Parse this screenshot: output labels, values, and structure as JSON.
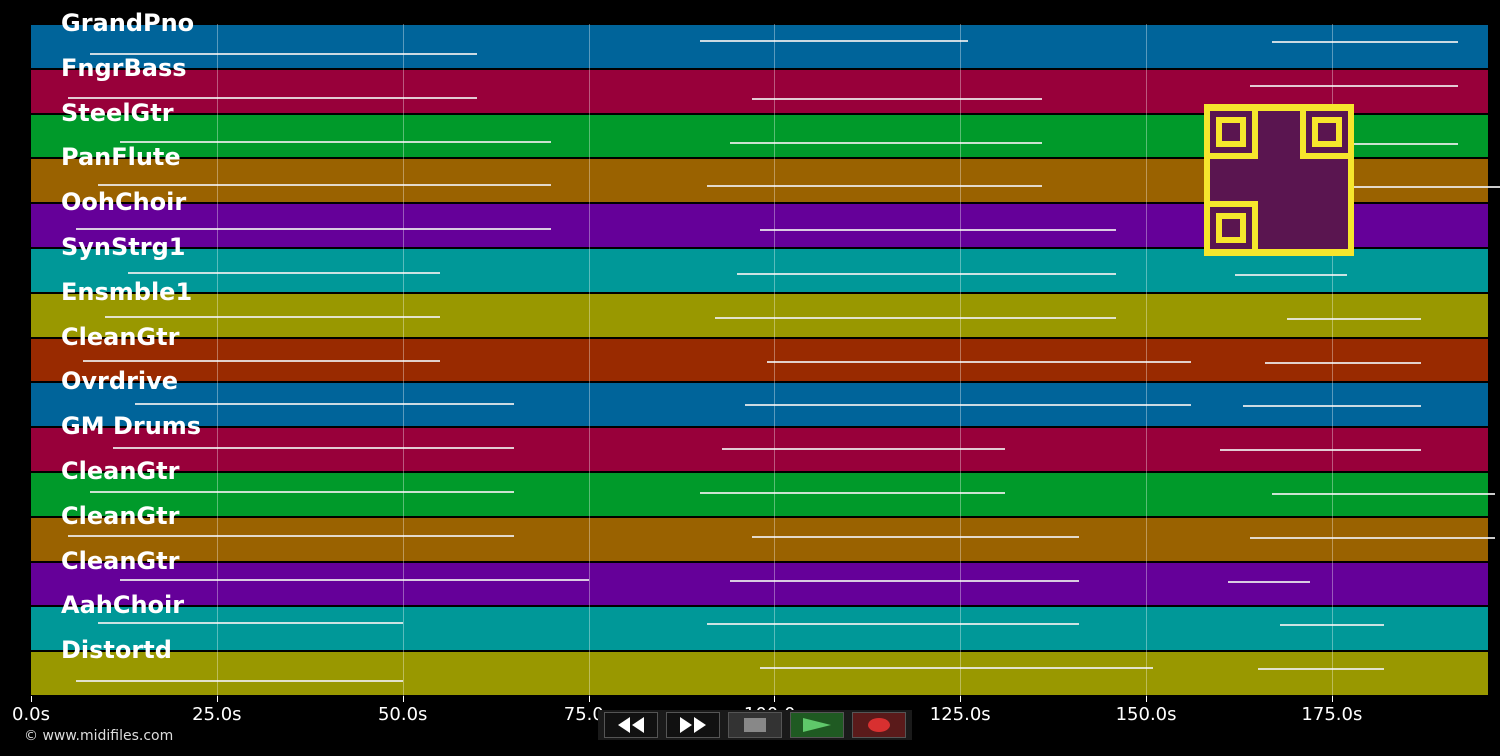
{
  "tracks": [
    {
      "name": "GrandPno",
      "color": "#00649a"
    },
    {
      "name": "FngrBass",
      "color": "#98003a"
    },
    {
      "name": "SteelGtr",
      "color": "#009a2a"
    },
    {
      "name": "PanFlute",
      "color": "#9a6200"
    },
    {
      "name": "OohChoir",
      "color": "#650099"
    },
    {
      "name": "SynStrg1",
      "color": "#009898"
    },
    {
      "name": "Ensmble1",
      "color": "#999800"
    },
    {
      "name": "CleanGtr",
      "color": "#992a00"
    },
    {
      "name": "Ovrdrive",
      "color": "#00649a"
    },
    {
      "name": "GM Drums",
      "color": "#98003a"
    },
    {
      "name": "CleanGtr",
      "color": "#009a2a"
    },
    {
      "name": "CleanGtr",
      "color": "#9a6200"
    },
    {
      "name": "CleanGtr",
      "color": "#650099"
    },
    {
      "name": "AahChoir",
      "color": "#009898"
    },
    {
      "name": "Distortd",
      "color": "#999800"
    }
  ],
  "time_axis": {
    "ticks": [
      "0.0s",
      "25.0s",
      "50.0s",
      "75.0s",
      "100.0s",
      "125.0s",
      "150.0s",
      "175.0s"
    ],
    "max_seconds": 196
  },
  "transport": {
    "rewind_icon": "rewind-icon",
    "fastforward_icon": "fast-forward-icon",
    "stop_icon": "stop-icon",
    "play_icon": "play-icon",
    "record_icon": "record-icon"
  },
  "copyright": "© www.midifiles.com"
}
